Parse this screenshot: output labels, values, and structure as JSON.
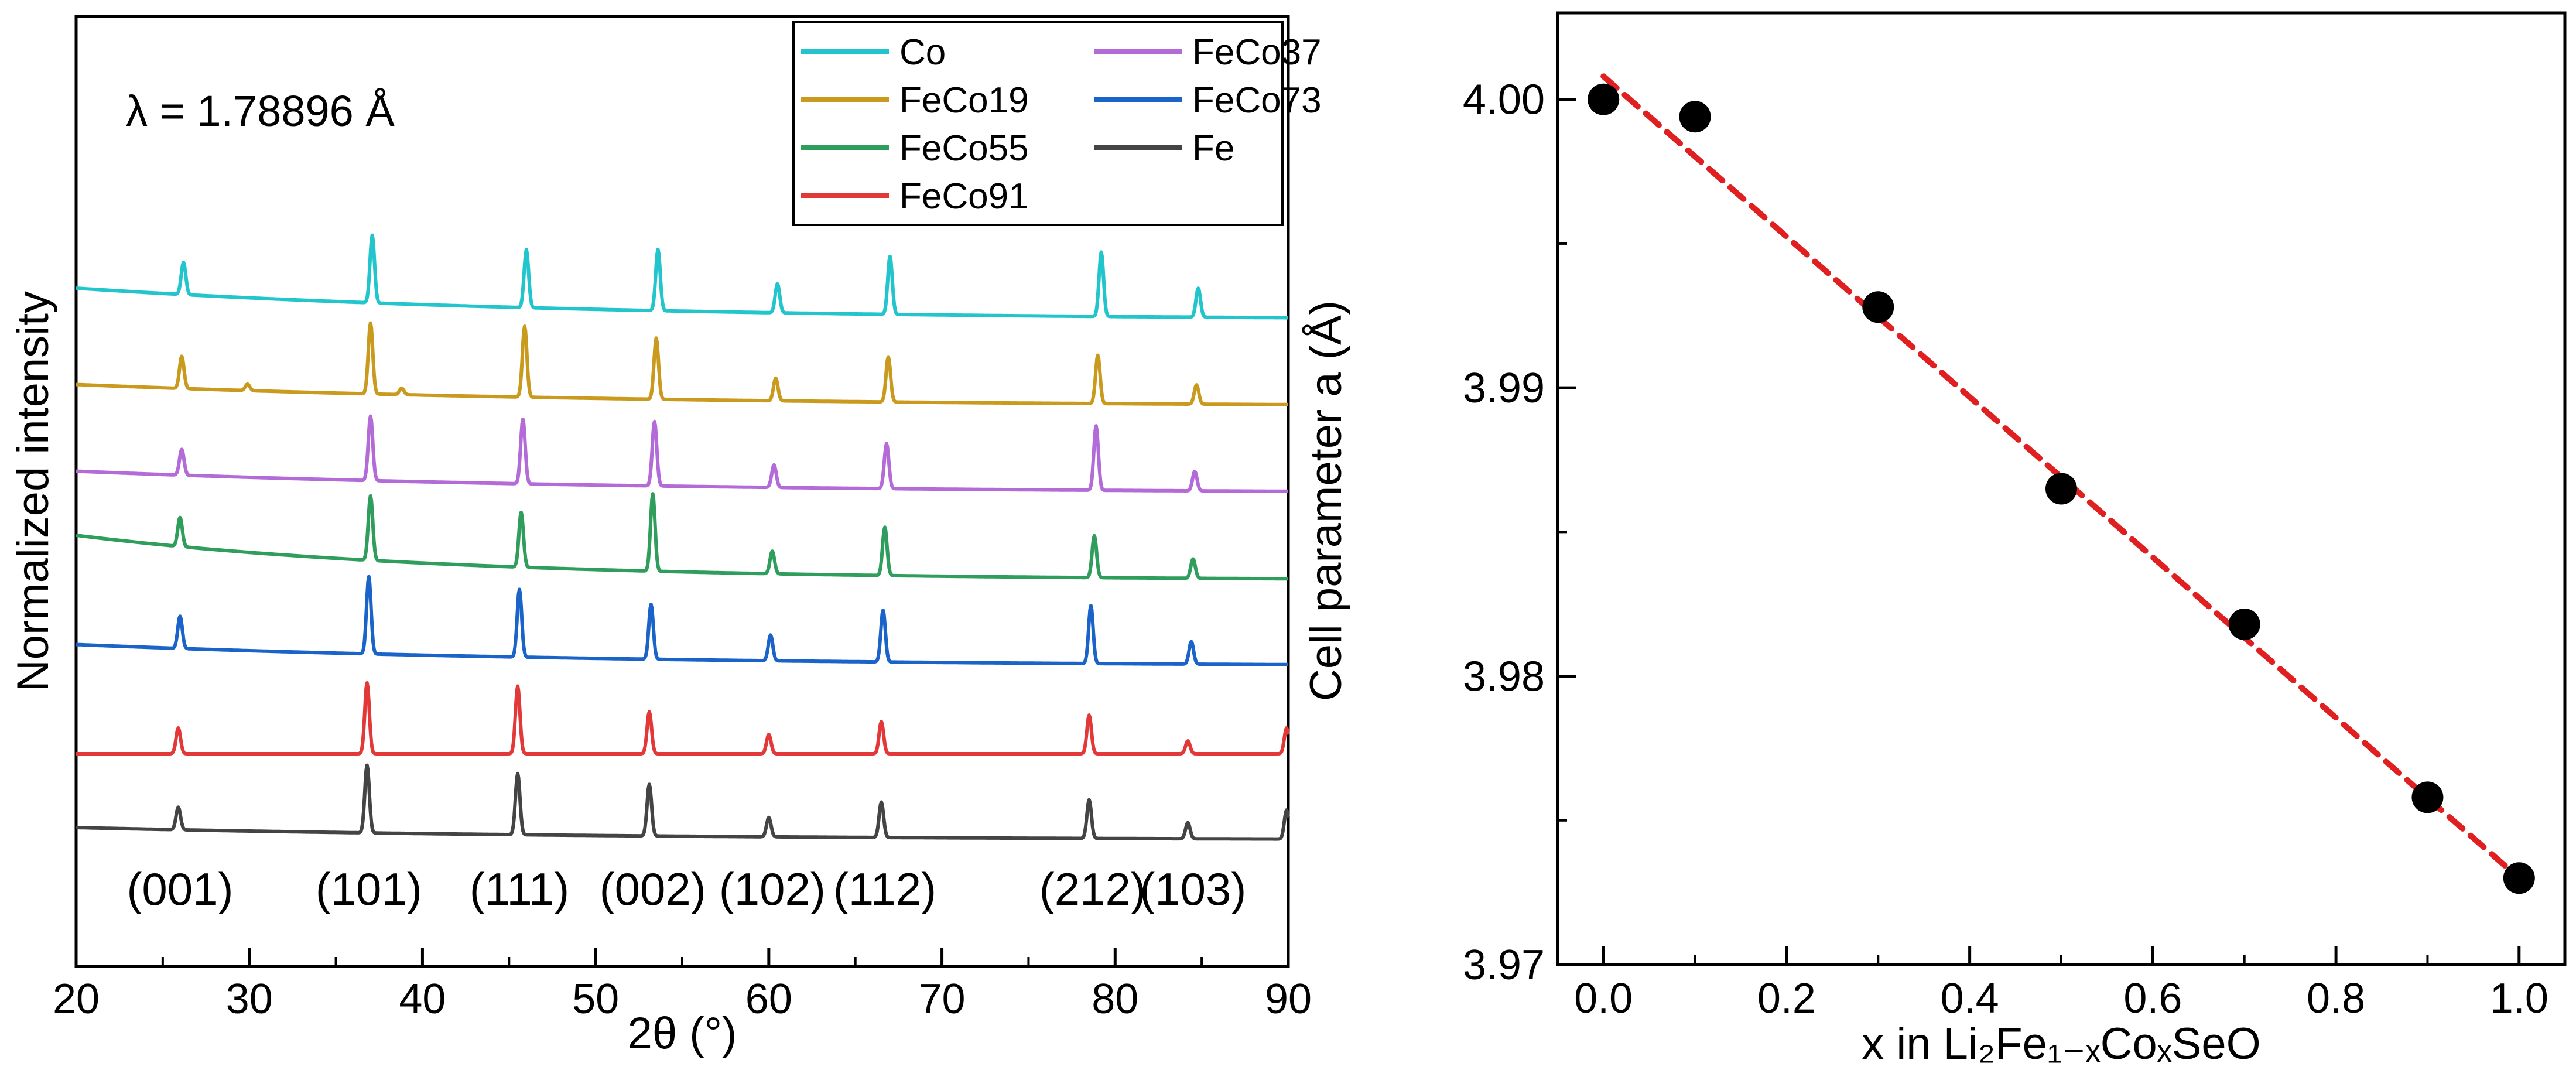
{
  "chart_data": [
    {
      "type": "line",
      "panel": "left",
      "xlabel": "2θ (°)",
      "ylabel": "Normalized intensity",
      "annotation": "λ = 1.78896 Å",
      "xlim": [
        20,
        90
      ],
      "xticks": [
        20,
        30,
        40,
        50,
        60,
        70,
        80,
        90
      ],
      "yticks": [],
      "legend_position": "top-right",
      "legend_columns": [
        [
          "Co",
          "FeCo19",
          "FeCo55",
          "FeCo91"
        ],
        [
          "FeCo37",
          "FeCo73",
          "Fe"
        ]
      ],
      "peak_labels": [
        {
          "text": "(001)",
          "x": 26.0
        },
        {
          "text": "(101)",
          "x": 36.9
        },
        {
          "text": "(111)",
          "x": 45.6
        },
        {
          "text": "(002)",
          "x": 53.3
        },
        {
          "text": "(102)",
          "x": 60.2
        },
        {
          "text": "(112)",
          "x": 66.7
        },
        {
          "text": "(212)",
          "x": 78.7
        },
        {
          "text": "(103)",
          "x": 84.5
        }
      ],
      "series": [
        {
          "name": "Co",
          "color": "#22c5cc",
          "offset": 6,
          "base_start": 0.5,
          "base_end": 0.0,
          "decay": 0.4,
          "peaks": [
            [
              26.2,
              0.5
            ],
            [
              37.1,
              1.05
            ],
            [
              46.0,
              0.9
            ],
            [
              53.6,
              0.95
            ],
            [
              60.5,
              0.45
            ],
            [
              67.0,
              0.9
            ],
            [
              79.2,
              1.0
            ],
            [
              84.8,
              0.45
            ]
          ]
        },
        {
          "name": "FeCo19",
          "color": "#c99a1e",
          "offset": 5,
          "base_start": 0.35,
          "base_end": 0.0,
          "decay": 0.45,
          "peaks": [
            [
              26.1,
              0.5
            ],
            [
              29.9,
              0.1
            ],
            [
              37.0,
              1.1
            ],
            [
              38.8,
              0.1
            ],
            [
              45.9,
              1.1
            ],
            [
              53.5,
              0.95
            ],
            [
              60.4,
              0.35
            ],
            [
              66.9,
              0.7
            ],
            [
              79.0,
              0.75
            ],
            [
              84.7,
              0.3
            ]
          ]
        },
        {
          "name": "FeCo37",
          "color": "#b36bd8",
          "offset": 4,
          "base_start": 0.35,
          "base_end": 0.0,
          "decay": 0.45,
          "peaks": [
            [
              26.1,
              0.4
            ],
            [
              37.0,
              1.0
            ],
            [
              45.8,
              1.0
            ],
            [
              53.4,
              1.0
            ],
            [
              60.3,
              0.35
            ],
            [
              66.8,
              0.7
            ],
            [
              78.9,
              1.0
            ],
            [
              84.6,
              0.3
            ]
          ]
        },
        {
          "name": "FeCo55",
          "color": "#2f9e5c",
          "offset": 3,
          "base_start": 0.7,
          "base_end": 0.0,
          "decay": 0.3,
          "peaks": [
            [
              26.0,
              0.45
            ],
            [
              37.0,
              1.0
            ],
            [
              45.7,
              0.85
            ],
            [
              53.3,
              1.2
            ],
            [
              60.2,
              0.35
            ],
            [
              66.7,
              0.75
            ],
            [
              78.8,
              0.65
            ],
            [
              84.5,
              0.3
            ]
          ]
        },
        {
          "name": "FeCo73",
          "color": "#1a63c9",
          "offset": 2,
          "base_start": 0.35,
          "base_end": 0.0,
          "decay": 0.45,
          "peaks": [
            [
              26.0,
              0.5
            ],
            [
              36.9,
              1.2
            ],
            [
              45.6,
              1.05
            ],
            [
              53.2,
              0.85
            ],
            [
              60.1,
              0.4
            ],
            [
              66.6,
              0.8
            ],
            [
              78.6,
              0.9
            ],
            [
              84.4,
              0.35
            ]
          ]
        },
        {
          "name": "FeCo91",
          "color": "#e23838",
          "offset": 1,
          "base_start": 0.0,
          "base_end": 0.0,
          "decay": 0.45,
          "peaks": [
            [
              25.9,
              0.4
            ],
            [
              36.8,
              1.1
            ],
            [
              45.5,
              1.05
            ],
            [
              53.1,
              0.65
            ],
            [
              60.0,
              0.3
            ],
            [
              66.5,
              0.5
            ],
            [
              78.5,
              0.6
            ],
            [
              84.2,
              0.2
            ],
            [
              89.9,
              0.4
            ]
          ]
        },
        {
          "name": "Fe",
          "color": "#444444",
          "offset": 0,
          "base_start": 0.2,
          "base_end": 0.0,
          "decay": 0.45,
          "peaks": [
            [
              25.9,
              0.35
            ],
            [
              36.8,
              1.05
            ],
            [
              45.5,
              0.95
            ],
            [
              53.1,
              0.8
            ],
            [
              60.0,
              0.3
            ],
            [
              66.5,
              0.55
            ],
            [
              78.5,
              0.6
            ],
            [
              84.2,
              0.25
            ],
            [
              89.9,
              0.45
            ]
          ]
        }
      ]
    },
    {
      "type": "scatter",
      "panel": "right",
      "xlabel": "x in Li₂Fe₁₋ₓCoₓSeO",
      "ylabel": "Cell parameter a (Å)",
      "xlim": [
        -0.05,
        1.05
      ],
      "ylim": [
        3.97,
        4.003
      ],
      "xticks": [
        "0.0",
        "0.2",
        "0.4",
        "0.6",
        "0.8",
        "1.0"
      ],
      "yticks": [
        "3.97",
        "3.98",
        "3.99",
        "4.00"
      ],
      "points": {
        "x": [
          0.0,
          0.1,
          0.3,
          0.5,
          0.7,
          0.9,
          1.0
        ],
        "y": [
          4.0,
          3.9994,
          3.9928,
          3.9865,
          3.9818,
          3.9758,
          3.973
        ]
      },
      "fit_line": {
        "x": [
          0.0,
          1.0
        ],
        "y": [
          4.0008,
          3.973
        ],
        "color": "#e02020",
        "style": "dashed"
      },
      "point_color": "#000000"
    }
  ]
}
